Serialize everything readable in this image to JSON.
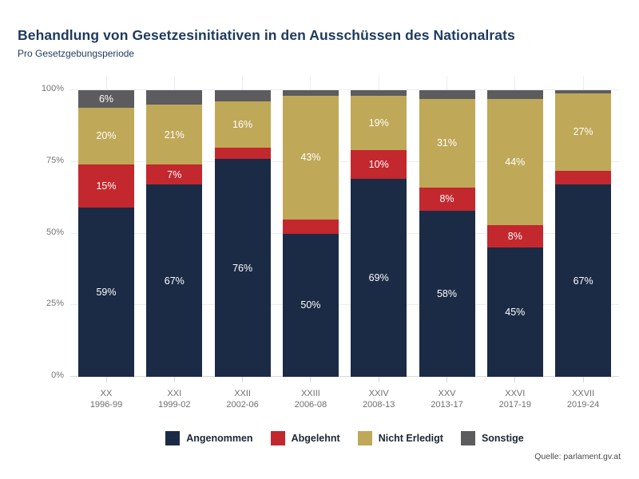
{
  "chart_data": {
    "type": "bar",
    "variant": "stacked-percent",
    "title": "Behandlung von Gesetzesinitiativen in den Ausschüssen des Nationalrats",
    "subtitle": "Pro Gesetzgebungsperiode",
    "categories": [
      {
        "label": "XX",
        "period": "1996-99"
      },
      {
        "label": "XXI",
        "period": "1999-02"
      },
      {
        "label": "XXII",
        "period": "2002-06"
      },
      {
        "label": "XXIII",
        "period": "2006-08"
      },
      {
        "label": "XXIV",
        "period": "2008-13"
      },
      {
        "label": "XXV",
        "period": "2013-17"
      },
      {
        "label": "XXVI",
        "period": "2017-19"
      },
      {
        "label": "XXVII",
        "period": "2019-24"
      }
    ],
    "series": [
      {
        "name": "Angenommen",
        "color": "#1b2b46",
        "values": [
          59,
          67,
          76,
          50,
          69,
          58,
          45,
          67
        ]
      },
      {
        "name": "Abgelehnt",
        "color": "#c2282e",
        "values": [
          15,
          7,
          4,
          5,
          10,
          8,
          8,
          5
        ]
      },
      {
        "name": "Nicht Erledigt",
        "color": "#bfa858",
        "values": [
          20,
          21,
          16,
          43,
          19,
          31,
          44,
          27
        ]
      },
      {
        "name": "Sonstige",
        "color": "#5c5c5e",
        "values": [
          6,
          5,
          4,
          2,
          2,
          3,
          3,
          1
        ]
      }
    ],
    "y_ticks": [
      0,
      25,
      50,
      75,
      100
    ],
    "ylim": [
      0,
      100
    ],
    "y_tick_suffix": "%",
    "value_suffix": "%",
    "label_min_pct": 6,
    "grid": true,
    "legend_position": "bottom"
  },
  "source": "Quelle: parlament.gv.at"
}
